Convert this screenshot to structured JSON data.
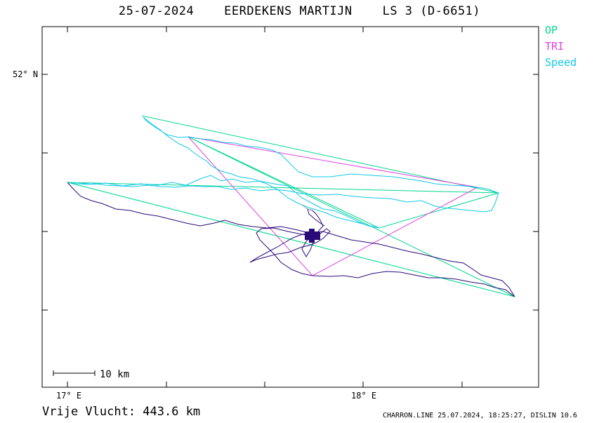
{
  "title": {
    "date": "25-07-2024",
    "pilot": "EERDEKENS MARTIJN",
    "glider": "LS 3 (D-6651)"
  },
  "legend": {
    "op": "OP",
    "tri": "TRI",
    "speed": "Speed",
    "colors": {
      "op": "#00d890",
      "tri": "#e040e0",
      "speed": "#10c8e8",
      "track": "#2a0a78"
    }
  },
  "axes": {
    "lat_label": "52° N",
    "lon_labels": [
      "17° E",
      "18° E"
    ]
  },
  "scale": {
    "label": "10 km"
  },
  "footer": {
    "distance": "Vrije Vlucht:  443.6 km",
    "meta": "CHARRON.LINE 25.07.2024, 18:25:27, DISLIN 10.6"
  }
}
